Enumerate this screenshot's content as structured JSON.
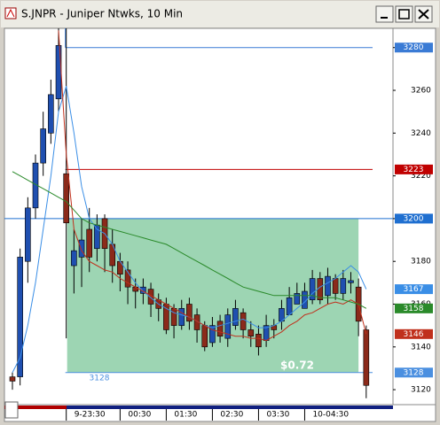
{
  "chart_data": {
    "type": "candlestick",
    "title": "S.JNPR - Juniper Ntwks, 10 Min",
    "x": [
      null,
      null,
      null,
      null,
      null,
      null,
      null,
      "9-23:30",
      null,
      null,
      null,
      null,
      null,
      null,
      "00:30",
      null,
      null,
      null,
      null,
      null,
      "01:30",
      null,
      null,
      null,
      null,
      null,
      "02:30",
      null,
      null,
      null,
      null,
      null,
      "03:30",
      null,
      null,
      null,
      null,
      null,
      "10-04:30",
      null,
      null,
      null,
      null,
      null,
      null,
      null,
      null
    ],
    "open": [
      3126,
      3126,
      3180,
      3205,
      3226,
      3240,
      3256,
      3221,
      3178,
      3182,
      3195,
      3186,
      3200,
      3188,
      3180,
      3176,
      3168,
      3165,
      3167,
      3162,
      3160,
      3158,
      3150,
      3160,
      3155,
      3150,
      3142,
      3152,
      3144,
      3150,
      3156,
      3148,
      3146,
      3143,
      3150,
      3152,
      3155,
      3160,
      3158,
      3162,
      3172,
      3164,
      3172,
      3165,
      3170,
      3168,
      3148
    ],
    "high": [
      3128,
      3186,
      3210,
      3230,
      3250,
      3265,
      3289,
      3289,
      3195,
      3200,
      3205,
      3202,
      3202,
      3195,
      3184,
      3180,
      3172,
      3172,
      3170,
      3165,
      3163,
      3160,
      3162,
      3163,
      3158,
      3152,
      3154,
      3155,
      3158,
      3162,
      3158,
      3152,
      3150,
      3155,
      3153,
      3162,
      3168,
      3170,
      3170,
      3176,
      3175,
      3177,
      3174,
      3176,
      3175,
      3172,
      3150
    ],
    "low": [
      3120,
      3122,
      3170,
      3200,
      3220,
      3235,
      3250,
      3144,
      3165,
      3168,
      3175,
      3180,
      3175,
      3170,
      3166,
      3160,
      3158,
      3160,
      3154,
      3152,
      3146,
      3144,
      3148,
      3148,
      3142,
      3138,
      3140,
      3142,
      3140,
      3148,
      3144,
      3140,
      3136,
      3140,
      3144,
      3148,
      3155,
      3160,
      3158,
      3160,
      3160,
      3160,
      3162,
      3162,
      3165,
      3145,
      3116
    ],
    "close": [
      3124,
      3182,
      3205,
      3226,
      3242,
      3258,
      3281,
      3198,
      3185,
      3190,
      3182,
      3197,
      3186,
      3178,
      3174,
      3168,
      3166,
      3168,
      3160,
      3158,
      3148,
      3150,
      3158,
      3152,
      3148,
      3140,
      3150,
      3145,
      3155,
      3158,
      3148,
      3145,
      3140,
      3150,
      3148,
      3158,
      3163,
      3165,
      3166,
      3172,
      3162,
      3173,
      3165,
      3172,
      3171,
      3152,
      3122
    ],
    "up_color": "#1f4fb0",
    "down_color": "#8b2a1a",
    "overlays": [
      {
        "color": "#3a8ee6",
        "values": [
          3128,
          3135,
          3150,
          3170,
          3195,
          3220,
          3250,
          3262,
          3240,
          3215,
          3200,
          3195,
          3193,
          3188,
          3180,
          3175,
          3170,
          3166,
          3163,
          3160,
          3158,
          3156,
          3155,
          3154,
          3152,
          3150,
          3149,
          3150,
          3151,
          3152,
          3153,
          3151,
          3149,
          3149,
          3150,
          3152,
          3155,
          3158,
          3161,
          3165,
          3168,
          3170,
          3172,
          3175,
          3178,
          3175,
          3167
        ]
      },
      {
        "color": "#c0301c",
        "values": [
          null,
          null,
          null,
          null,
          null,
          null,
          3288,
          3230,
          3195,
          3185,
          3180,
          3178,
          3176,
          3175,
          3172,
          3170,
          3168,
          3166,
          3164,
          3162,
          3160,
          3158,
          3156,
          3154,
          3152,
          3150,
          3148,
          3147,
          3146,
          3145,
          3145,
          3144,
          3144,
          3143,
          3145,
          3147,
          3150,
          3152,
          3155,
          3156,
          3158,
          3160,
          3161,
          3160,
          3162,
          3160,
          3146
        ]
      },
      {
        "color": "#2a8a2a",
        "values": [
          3222,
          3220,
          3218,
          3216,
          3214,
          3212,
          3210,
          3208,
          3204,
          3200,
          3198,
          3197,
          3196,
          3195,
          3194,
          3193,
          3192,
          3191,
          3190,
          3189,
          3188,
          3186,
          3184,
          3182,
          3180,
          3178,
          3176,
          3174,
          3172,
          3170,
          3168,
          3167,
          3166,
          3165,
          3164,
          3164,
          3164,
          3164,
          3164,
          3164,
          3163,
          3163,
          3163,
          3162,
          3161,
          3160,
          3158
        ]
      }
    ],
    "levels": [
      {
        "value": 3280,
        "color": "#3a7bd5",
        "full_width": false
      },
      {
        "value": 3223,
        "color": "#c00000",
        "full_width": false
      },
      {
        "value": 3200,
        "color": "#1f6fd0",
        "full_width": true
      },
      {
        "value": 3128,
        "color": "#4a8fe0",
        "full_width": false
      }
    ],
    "range_box": {
      "top": 3200,
      "bottom": 3128,
      "label": "$0.72",
      "color": "#7cc79a"
    },
    "ylim": [
      3113,
      3289
    ],
    "yticks": [
      3120,
      3140,
      3160,
      3180,
      3200,
      3220,
      3240,
      3260,
      3280
    ]
  }
}
